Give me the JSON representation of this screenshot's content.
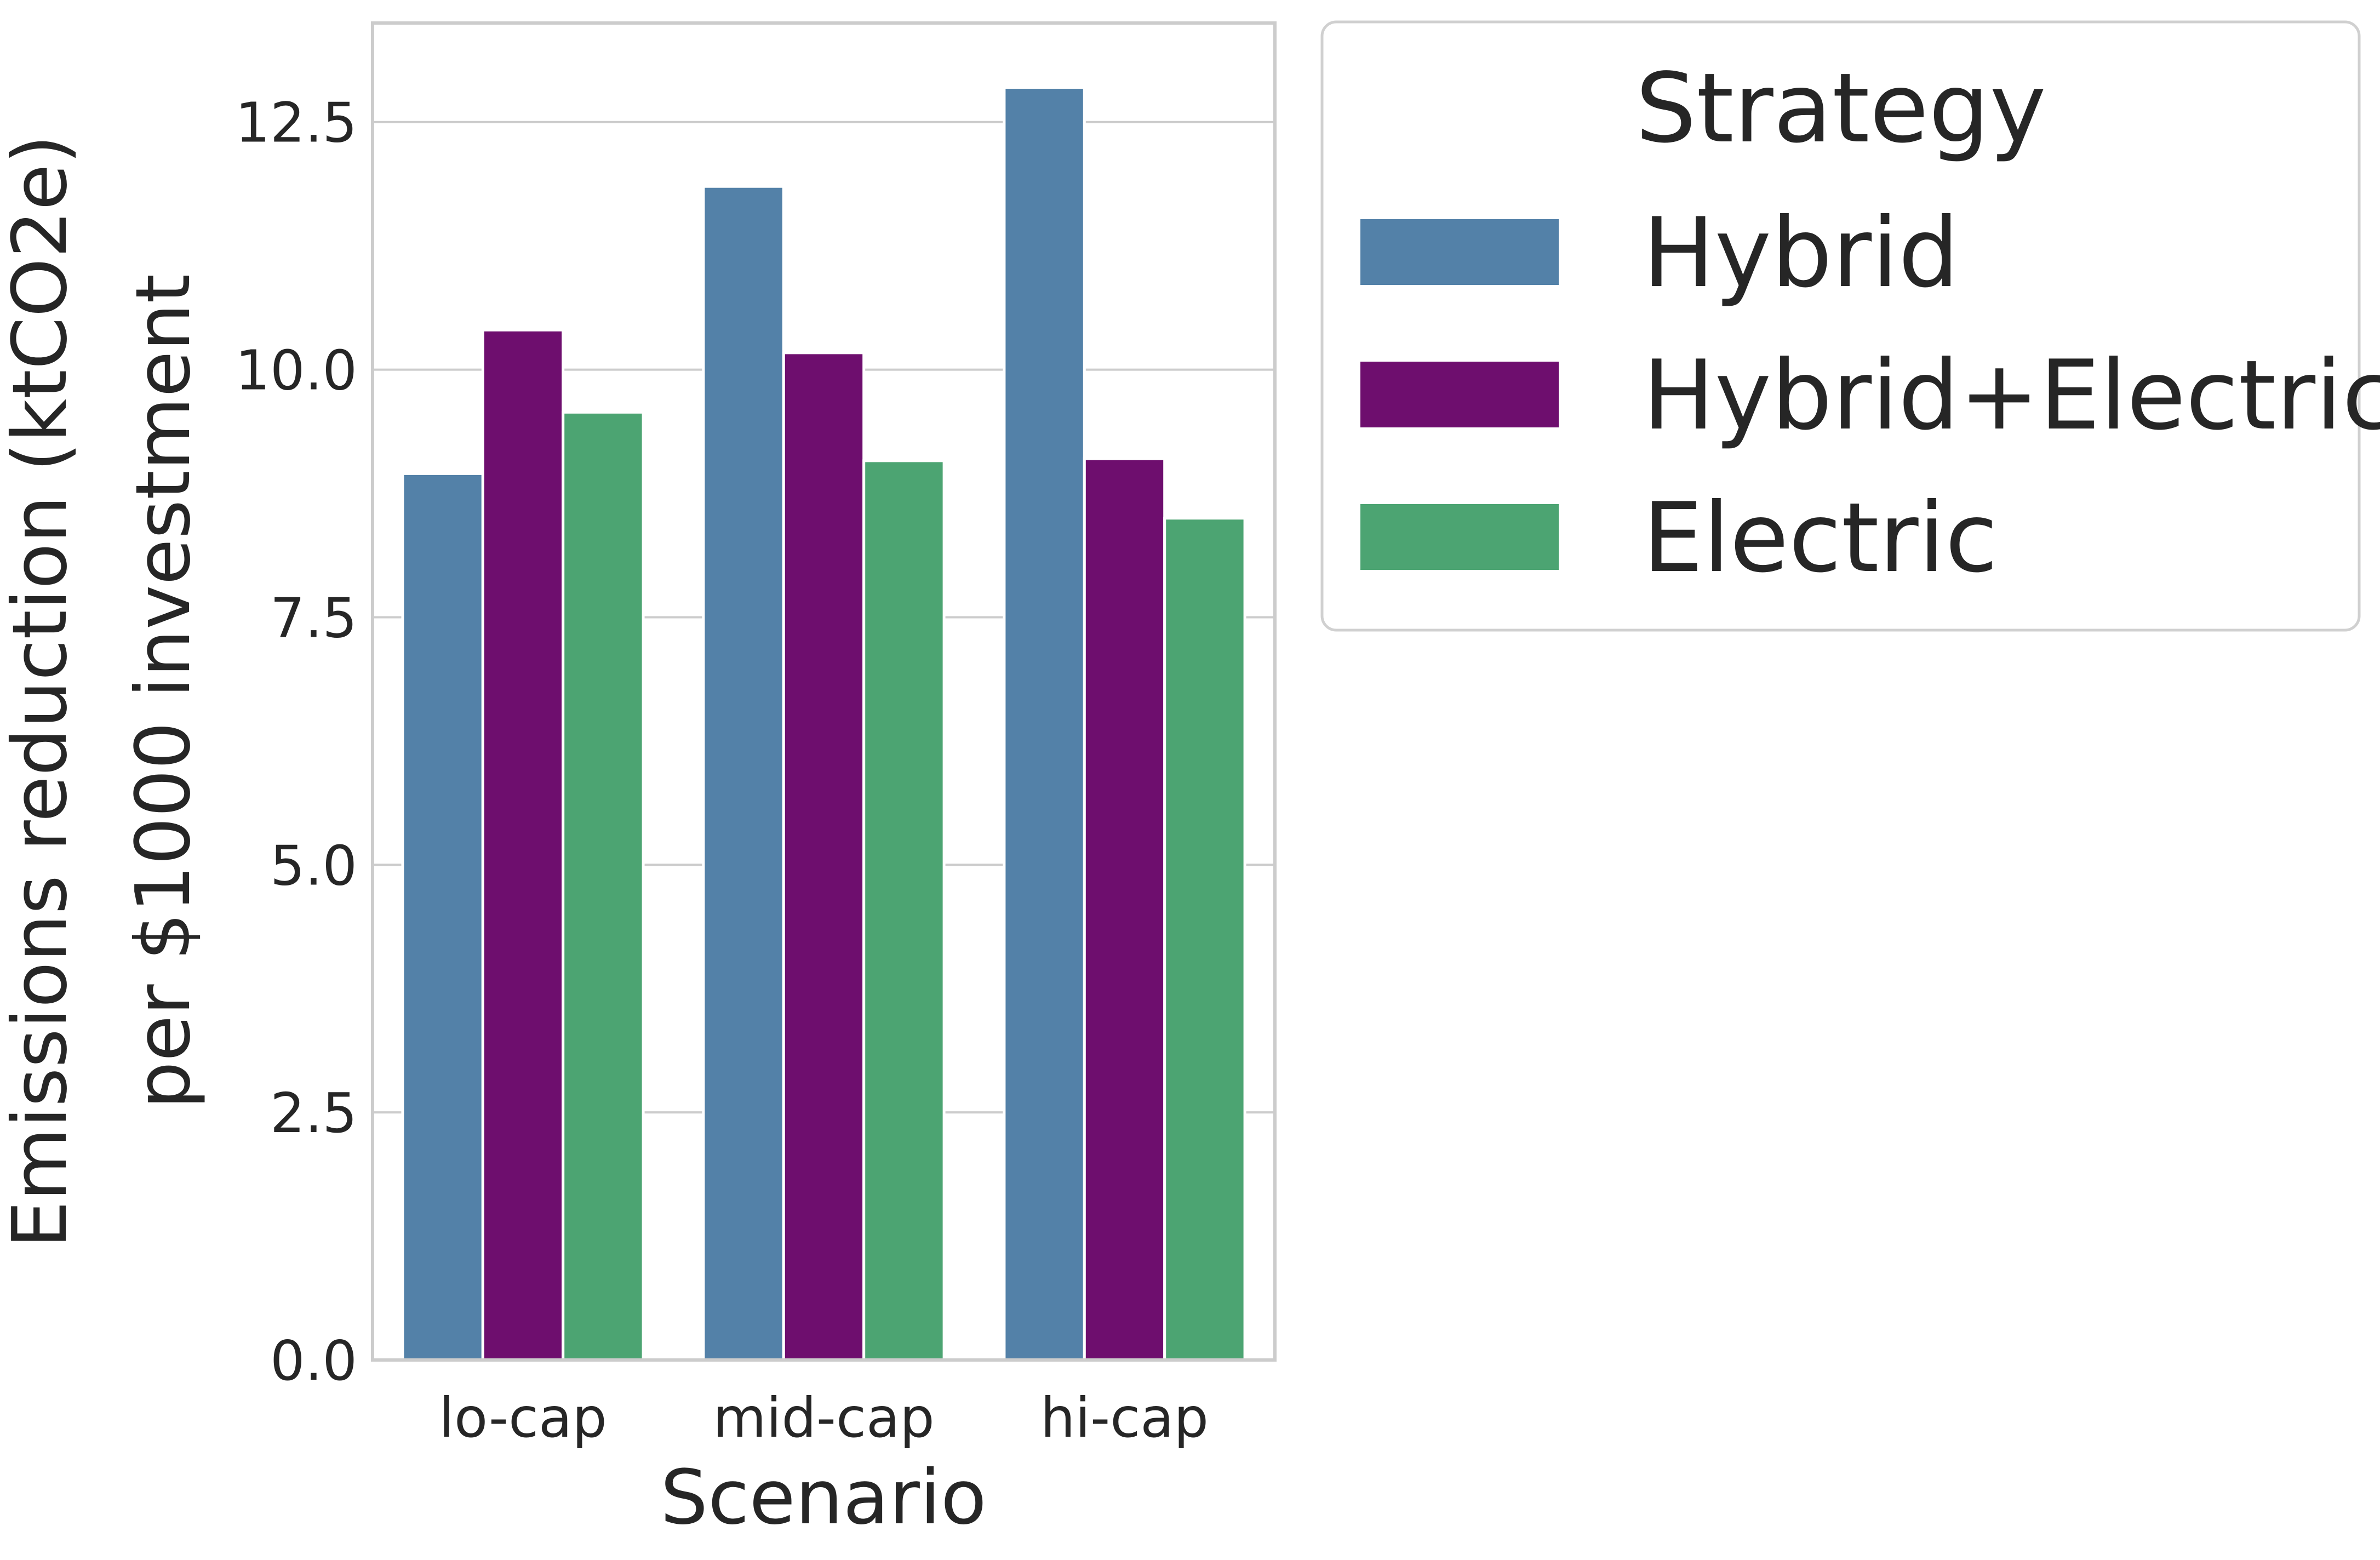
{
  "chart_data": {
    "type": "bar",
    "categories": [
      "lo-cap",
      "mid-cap",
      "hi-cap"
    ],
    "series": [
      {
        "name": "Hybrid",
        "color": "#5381a8",
        "values": [
          8.95,
          11.85,
          12.85
        ]
      },
      {
        "name": "Hybrid+Electric",
        "color": "#6e0e6e",
        "values": [
          10.4,
          10.17,
          9.1
        ]
      },
      {
        "name": "Electric",
        "color": "#4ca472",
        "values": [
          9.57,
          9.08,
          8.5
        ]
      }
    ],
    "xlabel": "Scenario",
    "ylabel_lines": [
      "Emissions reduction (ktCO2e)",
      "per $1000 investment"
    ],
    "ylim": [
      0,
      13.5
    ],
    "yticks": [
      "0.0",
      "2.5",
      "5.0",
      "7.5",
      "10.0",
      "12.5"
    ],
    "grid": "y",
    "legend": {
      "title": "Strategy",
      "placement": "outside-top-right"
    }
  }
}
